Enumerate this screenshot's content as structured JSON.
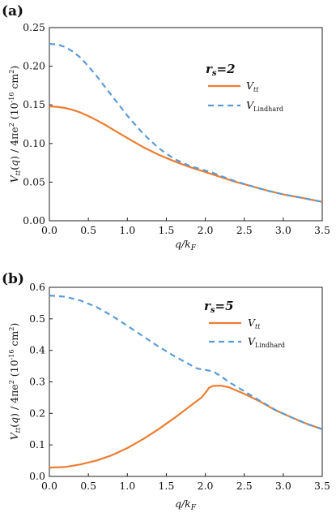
{
  "colors": {
    "vtt": "#ed7d31",
    "lindhard": "#5b9bd5"
  },
  "chart_data": [
    {
      "type": "line",
      "panel_label": "(a)",
      "legend_title": "rs=2",
      "xlabel": "q/kF",
      "ylabel": "Vtt(q) / 4πe² (10⁻¹⁶ cm²)",
      "xlim": [
        0,
        3.5
      ],
      "ylim": [
        0,
        0.25
      ],
      "xticks": [
        "0.0",
        "0.5",
        "1.0",
        "1.5",
        "2.0",
        "2.5",
        "3.0",
        "3.5"
      ],
      "yticks": [
        "0.00",
        "0.05",
        "0.10",
        "0.15",
        "0.20",
        "0.25"
      ],
      "legend_position": "top-right",
      "series": [
        {
          "name": "Vtt",
          "style": "solid",
          "x": [
            0,
            0.1,
            0.2,
            0.3,
            0.4,
            0.5,
            0.6,
            0.7,
            0.8,
            0.9,
            1.0,
            1.2,
            1.4,
            1.6,
            1.8,
            2.0,
            2.2,
            2.4,
            2.6,
            2.8,
            3.0,
            3.2,
            3.4,
            3.5
          ],
          "y": [
            0.148,
            0.1475,
            0.146,
            0.1435,
            0.14,
            0.1355,
            0.1305,
            0.125,
            0.119,
            0.113,
            0.107,
            0.0955,
            0.0855,
            0.077,
            0.0695,
            0.063,
            0.0565,
            0.05,
            0.0445,
            0.039,
            0.034,
            0.0305,
            0.0265,
            0.0245
          ]
        },
        {
          "name": "VLindhard",
          "style": "dashed",
          "x": [
            0,
            0.1,
            0.2,
            0.3,
            0.4,
            0.5,
            0.6,
            0.7,
            0.8,
            0.9,
            1.0,
            1.2,
            1.4,
            1.6,
            1.8,
            1.9,
            2.0,
            2.1,
            2.2,
            2.4,
            2.6,
            2.8,
            3.0,
            3.2,
            3.4,
            3.5
          ],
          "y": [
            0.229,
            0.228,
            0.225,
            0.219,
            0.211,
            0.2,
            0.188,
            0.175,
            0.162,
            0.149,
            0.136,
            0.113,
            0.094,
            0.08,
            0.071,
            0.068,
            0.065,
            0.062,
            0.058,
            0.0505,
            0.0445,
            0.039,
            0.034,
            0.0305,
            0.0265,
            0.0245
          ]
        }
      ]
    },
    {
      "type": "line",
      "panel_label": "(b)",
      "legend_title": "rs=5",
      "xlabel": "q/kF",
      "ylabel": "Vtt(q) / 4πe² (10⁻¹⁶ cm²)",
      "xlim": [
        0,
        3.5
      ],
      "ylim": [
        0,
        0.6
      ],
      "xticks": [
        "0.0",
        "0.5",
        "1.0",
        "1.5",
        "2.0",
        "2.5",
        "3.0",
        "3.5"
      ],
      "yticks": [
        "0.0",
        "0.1",
        "0.2",
        "0.3",
        "0.4",
        "0.5",
        "0.6"
      ],
      "legend_position": "top-right",
      "series": [
        {
          "name": "Vtt",
          "style": "solid",
          "x": [
            0,
            0.2,
            0.4,
            0.6,
            0.8,
            1.0,
            1.2,
            1.4,
            1.6,
            1.8,
            1.95,
            2.0,
            2.05,
            2.1,
            2.2,
            2.3,
            2.5,
            2.7,
            2.9,
            3.1,
            3.3,
            3.5
          ],
          "y": [
            0.028,
            0.03,
            0.038,
            0.05,
            0.067,
            0.09,
            0.118,
            0.15,
            0.185,
            0.222,
            0.25,
            0.265,
            0.282,
            0.287,
            0.288,
            0.283,
            0.262,
            0.238,
            0.21,
            0.188,
            0.167,
            0.15
          ]
        },
        {
          "name": "VLindhard",
          "style": "dashed",
          "x": [
            0,
            0.2,
            0.4,
            0.6,
            0.8,
            1.0,
            1.2,
            1.4,
            1.6,
            1.8,
            1.9,
            2.0,
            2.1,
            2.2,
            2.3,
            2.5,
            2.7,
            2.9,
            3.1,
            3.3,
            3.5
          ],
          "y": [
            0.574,
            0.57,
            0.558,
            0.538,
            0.51,
            0.478,
            0.445,
            0.412,
            0.382,
            0.355,
            0.342,
            0.338,
            0.333,
            0.318,
            0.3,
            0.27,
            0.24,
            0.211,
            0.188,
            0.167,
            0.15
          ]
        }
      ]
    }
  ]
}
